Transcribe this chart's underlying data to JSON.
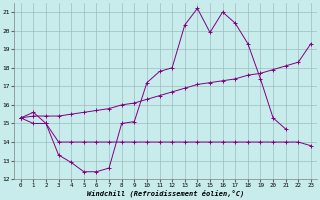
{
  "xlabel": "Windchill (Refroidissement éolien,°C)",
  "bg_color": "#c8ecec",
  "grid_color": "#9bbfbf",
  "line_color": "#800080",
  "xlim": [
    -0.5,
    23.5
  ],
  "ylim": [
    12,
    21.5
  ],
  "yticks": [
    12,
    13,
    14,
    15,
    16,
    17,
    18,
    19,
    20,
    21
  ],
  "xticks": [
    0,
    1,
    2,
    3,
    4,
    5,
    6,
    7,
    8,
    9,
    10,
    11,
    12,
    13,
    14,
    15,
    16,
    17,
    18,
    19,
    20,
    21,
    22,
    23
  ],
  "series1_x": [
    0,
    1,
    2,
    3,
    4,
    5,
    6,
    7,
    8,
    9,
    10,
    11,
    12,
    13,
    14,
    15,
    16,
    17,
    18,
    19,
    20,
    21,
    22,
    23
  ],
  "series1_y": [
    15.3,
    15.6,
    15.0,
    14.0,
    14.0,
    14.0,
    14.0,
    14.0,
    14.0,
    14.0,
    14.0,
    14.0,
    14.0,
    14.0,
    14.0,
    14.0,
    14.0,
    14.0,
    14.0,
    14.0,
    14.0,
    14.0,
    14.0,
    13.8
  ],
  "series2_x": [
    0,
    1,
    2,
    3,
    4,
    5,
    6,
    7,
    8,
    9,
    10,
    11,
    12,
    13,
    14,
    15,
    16,
    17,
    18,
    19,
    20,
    21
  ],
  "series2_y": [
    15.3,
    15.0,
    15.0,
    13.3,
    12.9,
    12.4,
    12.4,
    12.6,
    15.0,
    15.1,
    17.2,
    17.8,
    18.0,
    20.3,
    21.2,
    19.9,
    21.0,
    20.4,
    19.3,
    17.4,
    15.3,
    14.7
  ],
  "series3_x": [
    0,
    1,
    2,
    3,
    4,
    5,
    6,
    7,
    8,
    9,
    10,
    11,
    12,
    13,
    14,
    15,
    16,
    17,
    18,
    19,
    20,
    21,
    22,
    23
  ],
  "series3_y": [
    15.3,
    15.4,
    15.4,
    15.4,
    15.5,
    15.6,
    15.7,
    15.8,
    16.0,
    16.1,
    16.3,
    16.5,
    16.7,
    16.9,
    17.1,
    17.2,
    17.3,
    17.4,
    17.6,
    17.7,
    17.9,
    18.1,
    18.3,
    19.3
  ]
}
